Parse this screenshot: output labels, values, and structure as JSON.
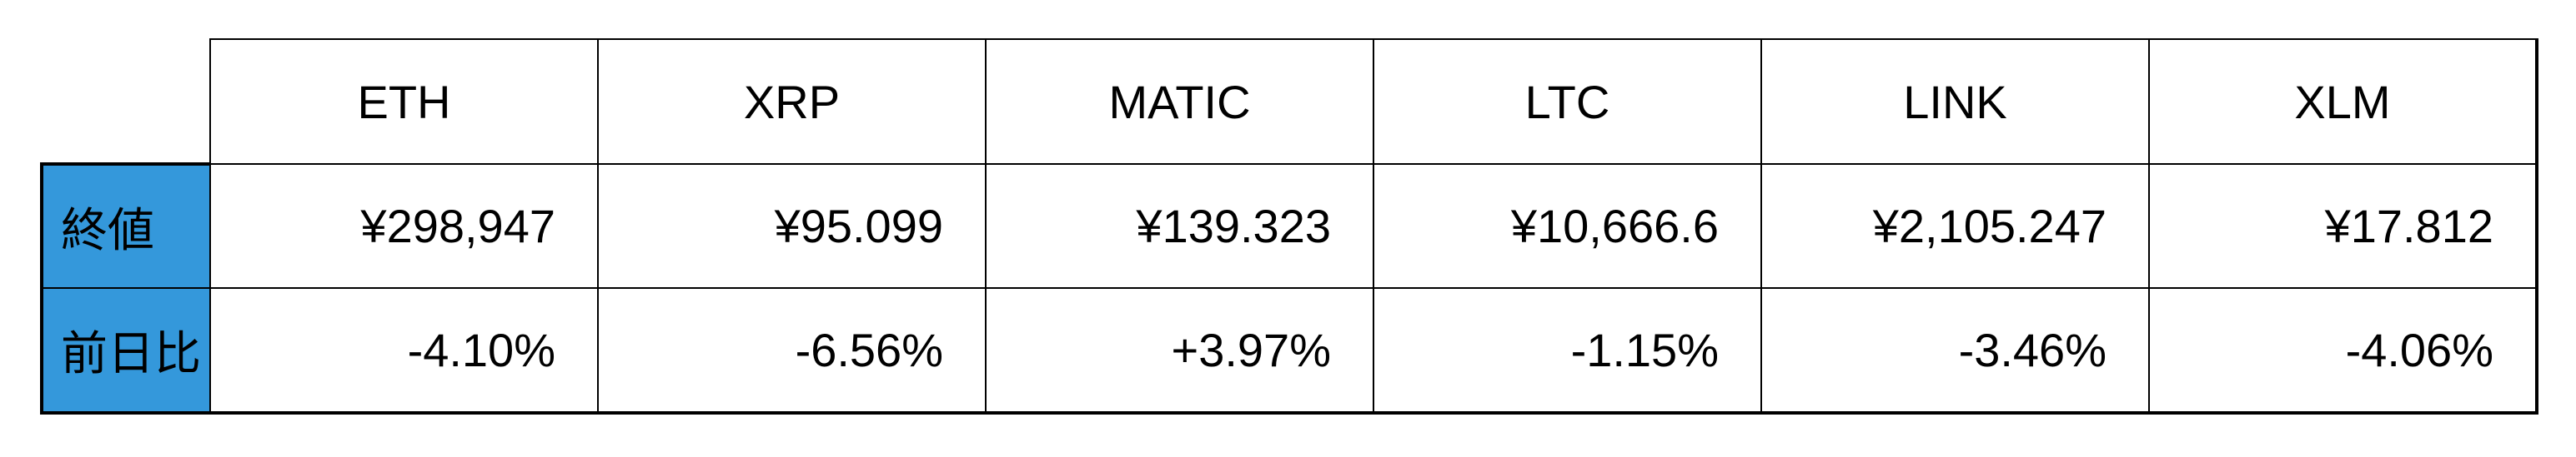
{
  "table": {
    "columns": [
      "ETH",
      "XRP",
      "MATIC",
      "LTC",
      "LINK",
      "XLM"
    ],
    "rows": [
      {
        "label": "終値",
        "values": [
          "¥298,947",
          "¥95.099",
          "¥139.323",
          "¥10,666.6",
          "¥2,105.247",
          "¥17.812"
        ]
      },
      {
        "label": "前日比",
        "values": [
          "-4.10%",
          "-6.56%",
          "+3.97%",
          "-1.15%",
          "-3.46%",
          "-4.06%"
        ]
      }
    ]
  },
  "colors": {
    "row_header_background": "#3498db",
    "border": "#000000",
    "text": "#000000",
    "page_background": "#ffffff"
  },
  "chart_data": {
    "type": "table",
    "columns": [
      "ETH",
      "XRP",
      "MATIC",
      "LTC",
      "LINK",
      "XLM"
    ],
    "row_labels": [
      "終値",
      "前日比"
    ],
    "cells": [
      [
        "¥298,947",
        "¥95.099",
        "¥139.323",
        "¥10,666.6",
        "¥2,105.247",
        "¥17.812"
      ],
      [
        "-4.10%",
        "-6.56%",
        "+3.97%",
        "-1.15%",
        "-3.46%",
        "-4.06%"
      ]
    ],
    "closing_price_jpy": [
      298947,
      95.099,
      139.323,
      10666.6,
      2105.247,
      17.812
    ],
    "day_over_day_change_percent": [
      -4.1,
      -6.56,
      3.97,
      -1.15,
      -3.46,
      -4.06
    ]
  }
}
